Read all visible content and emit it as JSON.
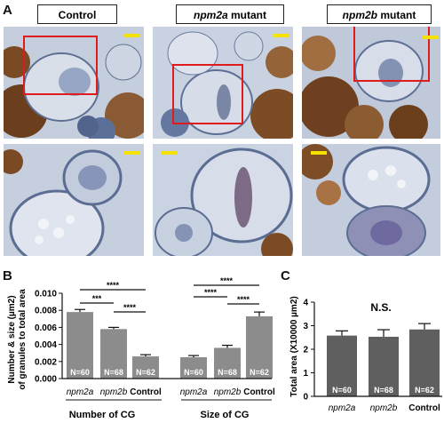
{
  "panelA": {
    "letter": "A",
    "columns": [
      {
        "prefix": "",
        "name": "Control",
        "suffix": ""
      },
      {
        "prefix": "",
        "name": "npm2a",
        "suffix": " mutant"
      },
      {
        "prefix": "",
        "name": "npm2b",
        "suffix": " mutant"
      }
    ]
  },
  "panelB": {
    "letter": "B",
    "ylabel_line1": "Number & size (µm2)",
    "ylabel_line2": "of granules to total area",
    "yticks": [
      "0.000",
      "0.002",
      "0.004",
      "0.006",
      "0.008",
      "0.010"
    ],
    "group1_label": "Number of CG",
    "group2_label": "Size of CG",
    "significance": "****",
    "significance3": "***"
  },
  "panelC": {
    "letter": "C",
    "ylabel": "Total area (X10000 µm2)",
    "yticks": [
      "0",
      "1",
      "2",
      "3",
      "4"
    ],
    "ns_label": "N.S."
  },
  "chart_data": [
    {
      "type": "bar",
      "ylabel": "Number & size (µm2) of granules to total area",
      "ylim": [
        0,
        0.01
      ],
      "categories": [
        "npm2a",
        "npm2b",
        "Control",
        "npm2a",
        "npm2b",
        "Control"
      ],
      "groups": [
        "Number of CG",
        "Size of CG"
      ],
      "values": [
        0.0078,
        0.0058,
        0.0026,
        0.0025,
        0.0036,
        0.0073
      ],
      "errors": [
        0.0003,
        0.0002,
        0.0002,
        0.0002,
        0.0003,
        0.0005
      ],
      "n_labels": [
        "N=60",
        "N=68",
        "N=62",
        "N=60",
        "N=68",
        "N=62"
      ]
    },
    {
      "type": "bar",
      "ylabel": "Total area (X10000 µm2)",
      "ylim": [
        0,
        4
      ],
      "categories": [
        "npm2a",
        "npm2b",
        "Control"
      ],
      "values": [
        2.58,
        2.53,
        2.84
      ],
      "errors": [
        0.2,
        0.3,
        0.25
      ],
      "n_labels": [
        "N=60",
        "N=68",
        "N=62"
      ]
    }
  ]
}
